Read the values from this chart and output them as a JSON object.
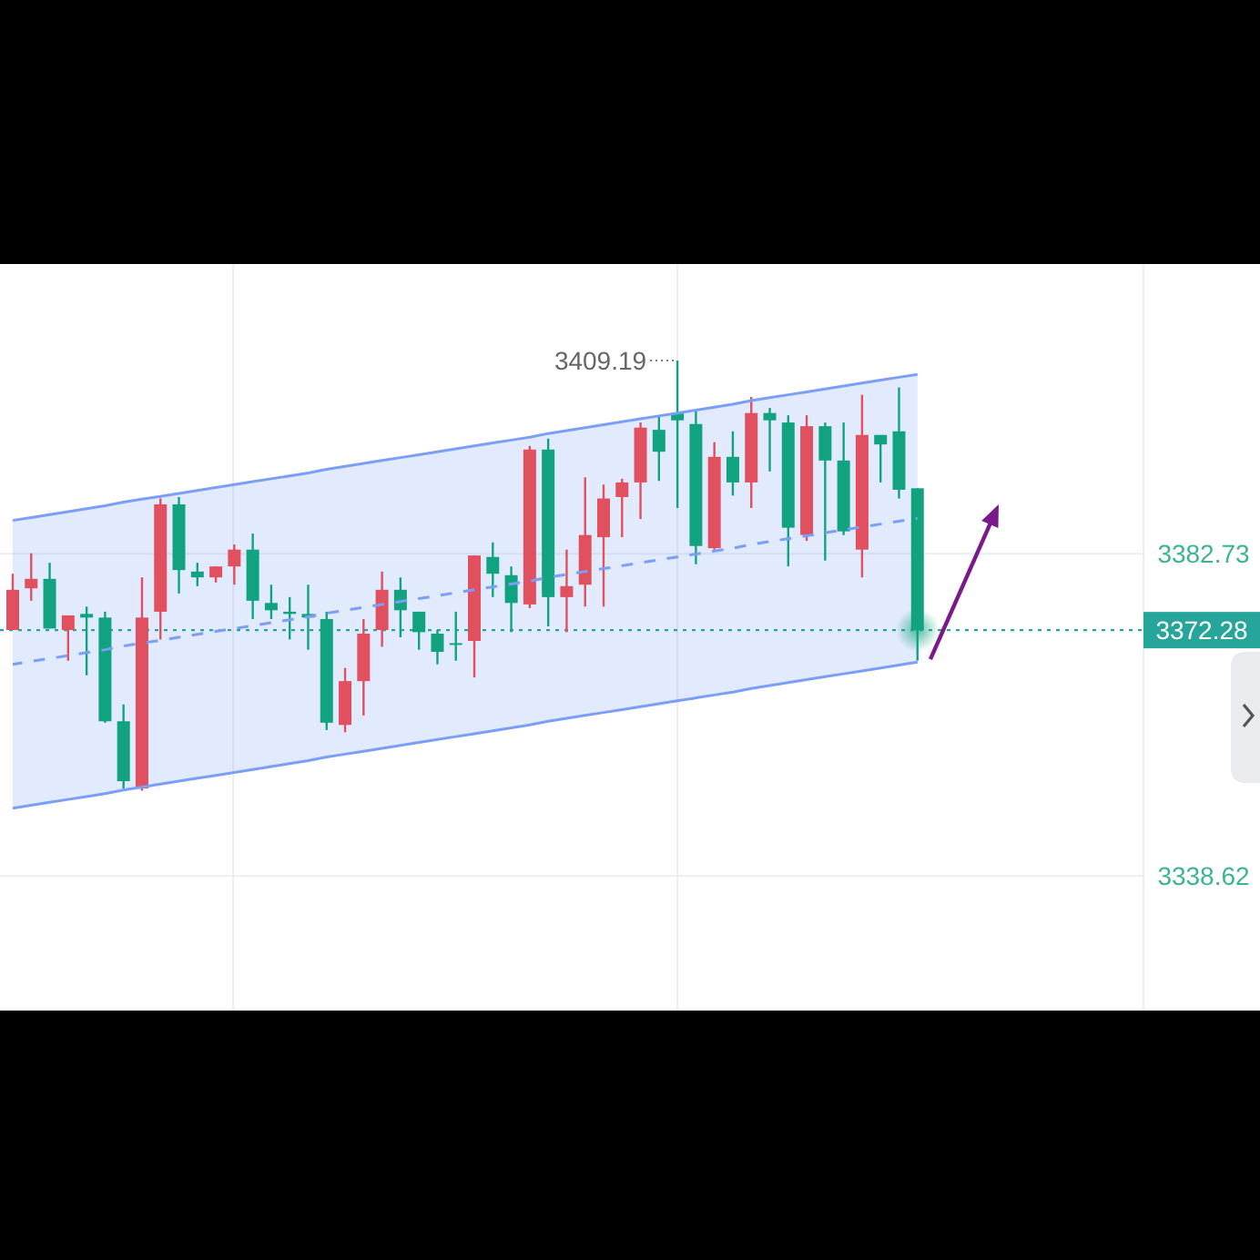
{
  "chart_data": {
    "type": "candlestick",
    "categories": [
      null,
      null,
      null,
      null,
      null,
      null,
      null,
      null,
      null,
      null,
      null,
      null,
      null,
      null,
      null,
      null,
      null,
      null,
      null,
      null,
      null,
      null,
      null,
      null,
      null,
      null,
      null,
      null,
      null,
      null,
      null,
      null,
      null,
      null,
      null,
      null,
      null,
      null,
      null,
      null,
      null,
      null,
      null,
      null,
      null,
      null,
      null,
      null,
      null,
      null
    ],
    "ylim": [
      3320.2,
      3422.4
    ],
    "yticks": [
      3382.73,
      3338.62
    ],
    "tick_labels": "y",
    "grid": true,
    "ohlc": [
      [
        3372.3,
        3380.0,
        3372.3,
        3377.8
      ],
      [
        3378.0,
        3382.8,
        3376.3,
        3379.3
      ],
      [
        3379.3,
        3381.5,
        3372.5,
        3372.5
      ],
      [
        3372.3,
        3374.3,
        3368.1,
        3374.3
      ],
      [
        3374.5,
        3375.5,
        3366.1,
        3374.0
      ],
      [
        3374.0,
        3374.8,
        3359.6,
        3359.8
      ],
      [
        3359.8,
        3362.1,
        3350.6,
        3351.6
      ],
      [
        3350.6,
        3379.5,
        3350.3,
        3374.0
      ],
      [
        3374.8,
        3390.3,
        3371.0,
        3389.5
      ],
      [
        3389.5,
        3390.5,
        3377.3,
        3380.5
      ],
      [
        3380.3,
        3381.5,
        3378.3,
        3379.5
      ],
      [
        3379.5,
        3381.0,
        3378.8,
        3381.0
      ],
      [
        3381.0,
        3384.0,
        3378.5,
        3383.3
      ],
      [
        3383.3,
        3385.5,
        3373.8,
        3376.3
      ],
      [
        3376.0,
        3378.5,
        3373.8,
        3375.0
      ],
      [
        3374.8,
        3376.8,
        3371.0,
        3374.5
      ],
      [
        3374.5,
        3378.5,
        3369.6,
        3374.0
      ],
      [
        3373.8,
        3374.8,
        3358.6,
        3359.6
      ],
      [
        3359.3,
        3367.1,
        3358.3,
        3365.3
      ],
      [
        3365.3,
        3373.8,
        3360.6,
        3371.8
      ],
      [
        3372.3,
        3380.3,
        3370.0,
        3377.8
      ],
      [
        3377.8,
        3379.5,
        3371.3,
        3375.0
      ],
      [
        3374.8,
        3374.8,
        3369.6,
        3372.0
      ],
      [
        3371.8,
        3372.3,
        3367.6,
        3369.3
      ],
      [
        3370.5,
        3374.8,
        3368.1,
        3370.3
      ],
      [
        3370.8,
        3382.5,
        3365.8,
        3382.5
      ],
      [
        3382.3,
        3384.3,
        3376.8,
        3380.0
      ],
      [
        3379.8,
        3381.0,
        3372.0,
        3376.0
      ],
      [
        3375.8,
        3397.5,
        3375.3,
        3397.0
      ],
      [
        3397.0,
        3398.5,
        3372.8,
        3376.8
      ],
      [
        3376.8,
        3383.3,
        3372.0,
        3378.3
      ],
      [
        3378.5,
        3393.2,
        3375.5,
        3385.3
      ],
      [
        3385.0,
        3392.2,
        3375.5,
        3390.3
      ],
      [
        3390.5,
        3393.0,
        3385.0,
        3392.5
      ],
      [
        3392.5,
        3400.7,
        3387.5,
        3400.0
      ],
      [
        3399.7,
        3401.7,
        3392.7,
        3396.7
      ],
      [
        3402.0,
        3409.19,
        3389.0,
        3401.0
      ],
      [
        3400.5,
        3402.5,
        3381.3,
        3383.8
      ],
      [
        3383.5,
        3398.0,
        3383.3,
        3396.0
      ],
      [
        3396.0,
        3399.5,
        3390.7,
        3392.5
      ],
      [
        3392.5,
        3404.2,
        3389.0,
        3402.0
      ],
      [
        3402.0,
        3402.7,
        3394.0,
        3401.0
      ],
      [
        3400.7,
        3401.7,
        3381.0,
        3386.3
      ],
      [
        3385.3,
        3401.7,
        3384.5,
        3400.2
      ],
      [
        3400.2,
        3400.7,
        3381.8,
        3395.5
      ],
      [
        3395.5,
        3400.7,
        3385.3,
        3385.8
      ],
      [
        3383.3,
        3404.5,
        3379.5,
        3399.0
      ],
      [
        3399.0,
        3399.0,
        3392.5,
        3397.7
      ],
      [
        3399.5,
        3405.5,
        3390.3,
        3391.5
      ],
      [
        3391.7,
        3391.7,
        3368.1,
        3372.28
      ]
    ],
    "colors": [
      "#e0505e",
      "#e0505e",
      "#11a37f",
      "#e0505e",
      "#11a37f",
      "#11a37f",
      "#11a37f",
      "#e0505e",
      "#e0505e",
      "#11a37f",
      "#11a37f",
      "#e0505e",
      "#e0505e",
      "#11a37f",
      "#11a37f",
      "#11a37f",
      "#11a37f",
      "#11a37f",
      "#e0505e",
      "#e0505e",
      "#e0505e",
      "#11a37f",
      "#11a37f",
      "#11a37f",
      "#11a37f",
      "#e0505e",
      "#11a37f",
      "#11a37f",
      "#e0505e",
      "#11a37f",
      "#e0505e",
      "#e0505e",
      "#e0505e",
      "#e0505e",
      "#e0505e",
      "#11a37f",
      "#11a37f",
      "#11a37f",
      "#e0505e",
      "#11a37f",
      "#e0505e",
      "#11a37f",
      "#11a37f",
      "#e0505e",
      "#11a37f",
      "#11a37f",
      "#e0505e",
      "#11a37f",
      "#11a37f",
      "#11a37f"
    ],
    "series": [
      {
        "type": "line",
        "values": [
          3367.6,
          3368.0,
          3368.4,
          3368.8,
          3369.2,
          3369.6,
          3370.1,
          3370.5,
          3370.9,
          3371.3,
          3371.7,
          3372.1,
          3372.5,
          3372.9,
          3373.3,
          3373.7,
          3374.1,
          3374.6,
          3375.0,
          3375.4,
          3375.8,
          3376.2,
          3376.6,
          3377.0,
          3377.4,
          3377.8,
          3378.2,
          3378.6,
          3379.0,
          3379.5,
          3379.9,
          3380.3,
          3380.7,
          3381.1,
          3381.5,
          3381.9,
          3382.3,
          3382.7,
          3383.1,
          3383.5,
          3384.0,
          3384.4,
          3384.8,
          3385.2,
          3385.6,
          3386.0,
          3386.4,
          3386.8,
          3387.2,
          3387.6
        ],
        "lower": [
          3347.9,
          3348.3,
          3348.7,
          3349.1,
          3349.5,
          3349.9,
          3350.4,
          3350.8,
          3351.2,
          3351.6,
          3352.0,
          3352.4,
          3352.8,
          3353.2,
          3353.6,
          3354.0,
          3354.4,
          3354.9,
          3355.3,
          3355.7,
          3356.1,
          3356.5,
          3356.9,
          3357.3,
          3357.7,
          3358.1,
          3358.5,
          3358.9,
          3359.3,
          3359.8,
          3360.2,
          3360.6,
          3361.0,
          3361.4,
          3361.8,
          3362.2,
          3362.6,
          3363.0,
          3363.4,
          3363.8,
          3364.3,
          3364.7,
          3365.1,
          3365.5,
          3365.9,
          3366.3,
          3366.7,
          3367.1,
          3367.5,
          3367.9
        ],
        "upper": [
          3387.3,
          3387.7,
          3388.1,
          3388.5,
          3388.9,
          3389.3,
          3389.8,
          3390.2,
          3390.6,
          3391.0,
          3391.4,
          3391.8,
          3392.2,
          3392.6,
          3393.0,
          3393.4,
          3393.8,
          3394.3,
          3394.7,
          3395.1,
          3395.5,
          3395.9,
          3396.3,
          3396.7,
          3397.1,
          3397.5,
          3397.9,
          3398.3,
          3398.7,
          3399.2,
          3399.6,
          3400.0,
          3400.4,
          3400.8,
          3401.2,
          3401.6,
          3402.0,
          3402.4,
          3402.8,
          3403.2,
          3403.7,
          3404.1,
          3404.5,
          3404.9,
          3405.3,
          3405.7,
          3406.1,
          3406.5,
          3406.9,
          3407.3
        ],
        "color": "#7b9ef8",
        "line_style": "dashed"
      },
      {
        "type": "line",
        "values": [
          3387.3,
          3387.7,
          3388.1,
          3388.5,
          3388.9,
          3389.3,
          3389.8,
          3390.2,
          3390.6,
          3391.0,
          3391.4,
          3391.8,
          3392.2,
          3392.6,
          3393.0,
          3393.4,
          3393.8,
          3394.3,
          3394.7,
          3395.1,
          3395.5,
          3395.9,
          3396.3,
          3396.7,
          3397.1,
          3397.5,
          3397.9,
          3398.3,
          3398.7,
          3399.2,
          3399.6,
          3400.0,
          3400.4,
          3400.8,
          3401.2,
          3401.6,
          3402.0,
          3402.4,
          3402.8,
          3403.2,
          3403.7,
          3404.1,
          3404.5,
          3404.9,
          3405.3,
          3405.7,
          3406.1,
          3406.5,
          3406.9,
          3407.3
        ],
        "color": "#7b9ef8",
        "line_style": "solid"
      },
      {
        "type": "line",
        "values": [
          3347.9,
          3348.3,
          3348.7,
          3349.1,
          3349.5,
          3349.9,
          3350.4,
          3350.8,
          3351.2,
          3351.6,
          3352.0,
          3352.4,
          3352.8,
          3353.2,
          3353.6,
          3354.0,
          3354.4,
          3354.9,
          3355.3,
          3355.7,
          3356.1,
          3356.5,
          3356.9,
          3357.3,
          3357.7,
          3358.1,
          3358.5,
          3358.9,
          3359.3,
          3359.8,
          3360.2,
          3360.6,
          3361.0,
          3361.4,
          3361.8,
          3362.2,
          3362.6,
          3363.0,
          3363.4,
          3363.8,
          3364.3,
          3364.7,
          3365.1,
          3365.5,
          3365.9,
          3366.3,
          3366.7,
          3367.1,
          3367.5,
          3367.9
        ],
        "color": "#7b9ef8",
        "line_style": "solid"
      }
    ],
    "ref_lines": [
      {
        "axis": "y",
        "value": 3372.28,
        "label": "3372.28",
        "color": "#26a69a",
        "line_style": "dotted"
      }
    ],
    "annotations": [
      "3409.19"
    ]
  }
}
